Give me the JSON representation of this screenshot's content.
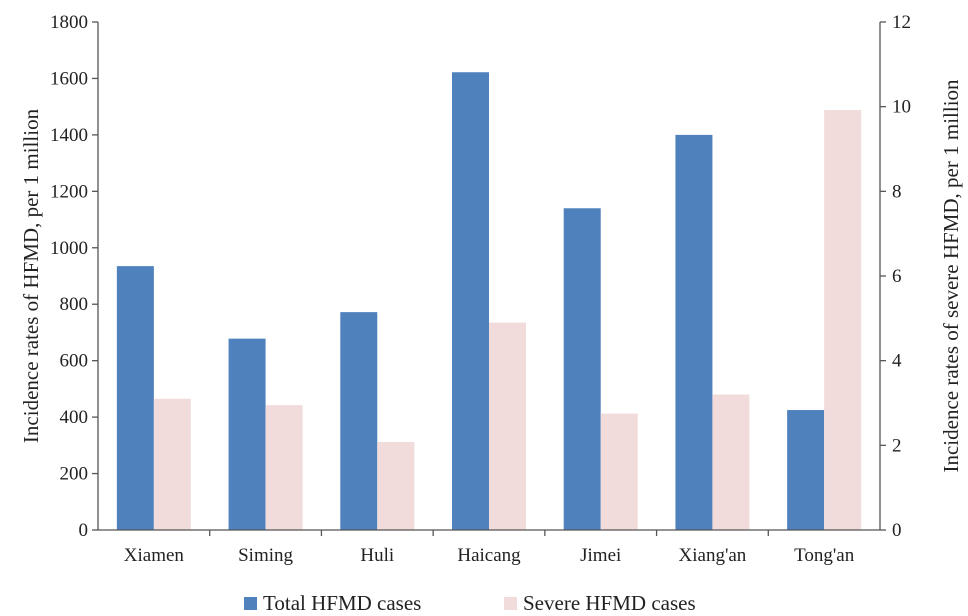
{
  "chart_data": {
    "type": "bar",
    "categories": [
      "Xiamen",
      "Siming",
      "Huli",
      "Haicang",
      "Jimei",
      "Xiang'an",
      "Tong'an"
    ],
    "series": [
      {
        "name": "Total HFMD cases",
        "axis": "left",
        "color": "#4f81bd",
        "values": [
          935,
          678,
          772,
          1622,
          1140,
          1400,
          425
        ]
      },
      {
        "name": "Severe HFMD cases",
        "axis": "right",
        "color": "#f2dcdb",
        "values": [
          3.1,
          2.95,
          2.08,
          4.9,
          2.75,
          3.2,
          9.92
        ]
      }
    ],
    "ylabel": "Incidence rates of HFMD, per 1 million",
    "ylabel_right": "Incidence rates of severe HFMD, per 1 million",
    "ylim": [
      0,
      1800
    ],
    "ylim_right": [
      0,
      12
    ],
    "yticks": [
      "0",
      "200",
      "400",
      "600",
      "800",
      "1000",
      "1200",
      "1400",
      "1600",
      "1800"
    ],
    "yticks_right": [
      "0",
      "2",
      "4",
      "6",
      "8",
      "10",
      "12"
    ],
    "grid": false,
    "legend_position": "bottom"
  }
}
